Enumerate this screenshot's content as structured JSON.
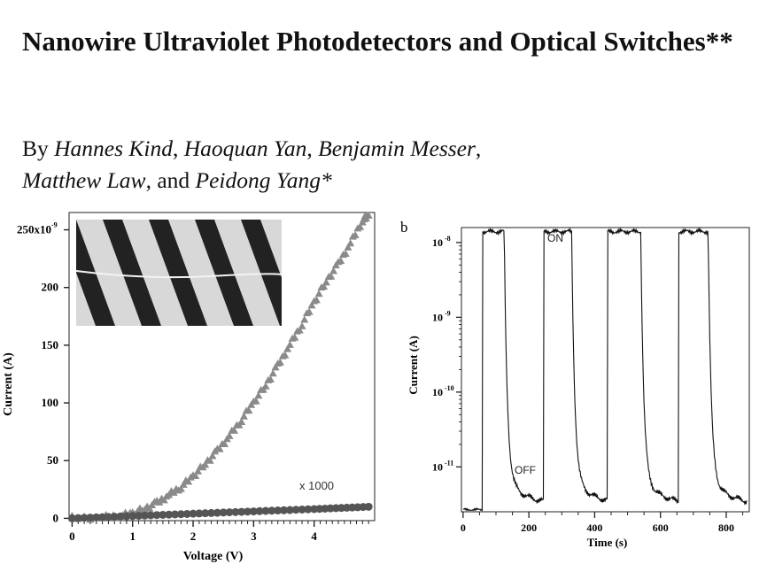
{
  "paper": {
    "title": "Nanowire Ultraviolet Photodetectors and Optical Switches**",
    "by_word": "By",
    "authors": [
      "Hannes Kind",
      "Haoquan Yan",
      "Benjamin Messer",
      "Matthew Law",
      "Peidong Yang*"
    ],
    "sep_comma": ",",
    "sep_and": ", and"
  },
  "chart_data": [
    {
      "type": "scatter",
      "panel_label": "",
      "xlabel": "Voltage (V)",
      "ylabel": "Current (A)",
      "xlim": [
        -0.05,
        5.0
      ],
      "ylim": [
        -2,
        265
      ],
      "x_ticks": [
        0,
        1,
        2,
        3,
        4
      ],
      "y_ticks": [
        0,
        50,
        100,
        150,
        200,
        250
      ],
      "y_tick_labels": [
        "0",
        "50",
        "100",
        "150",
        "200",
        "250x10"
      ],
      "y_top_exponent": "-9",
      "annotation": "x 1000",
      "inset": "SEM image of nanowire across electrodes",
      "series": [
        {
          "marker": "triangle",
          "color": "#8a8a8a",
          "points": [
            [
              0.0,
              0
            ],
            [
              0.5,
              0.5
            ],
            [
              0.8,
              2
            ],
            [
              1.0,
              4
            ],
            [
              1.2,
              8
            ],
            [
              1.4,
              13
            ],
            [
              1.6,
              20
            ],
            [
              1.8,
              27
            ],
            [
              2.0,
              36
            ],
            [
              2.2,
              47
            ],
            [
              2.4,
              58
            ],
            [
              2.6,
              71
            ],
            [
              2.8,
              85
            ],
            [
              3.0,
              100
            ],
            [
              3.2,
              115
            ],
            [
              3.4,
              132
            ],
            [
              3.6,
              150
            ],
            [
              3.8,
              168
            ],
            [
              4.0,
              187
            ],
            [
              4.2,
              205
            ],
            [
              4.4,
              220
            ],
            [
              4.6,
              238
            ],
            [
              4.8,
              258
            ],
            [
              4.9,
              262
            ]
          ]
        },
        {
          "marker": "circle",
          "color": "#555555",
          "points": [
            [
              0.0,
              0
            ],
            [
              1.0,
              2
            ],
            [
              2.0,
              4
            ],
            [
              3.0,
              6
            ],
            [
              4.0,
              8
            ],
            [
              4.9,
              10
            ]
          ]
        }
      ]
    },
    {
      "type": "line",
      "panel_label": "b",
      "xlabel": "Time (s)",
      "ylabel": "Current (A)",
      "yscale": "log",
      "xlim": [
        -5,
        870
      ],
      "ylim_exp": [
        -11.6,
        -7.8
      ],
      "x_ticks": [
        0,
        200,
        400,
        600,
        800
      ],
      "y_ticks": [
        {
          "base": "10",
          "exp": "-8"
        },
        {
          "base": "10",
          "exp": "-9"
        },
        {
          "base": "10",
          "exp": "-10"
        },
        {
          "base": "10",
          "exp": "-11"
        }
      ],
      "annotations": [
        "ON",
        "OFF"
      ],
      "cycles": [
        [
          60,
          125
        ],
        [
          245,
          330
        ],
        [
          440,
          540
        ],
        [
          655,
          745
        ]
      ],
      "on_level": 1.4e-08,
      "off_level": 3e-12
    }
  ]
}
